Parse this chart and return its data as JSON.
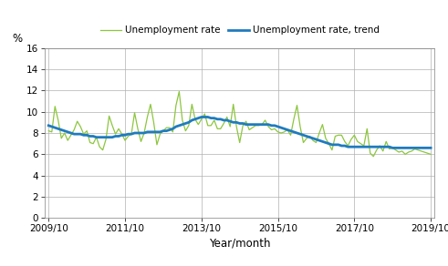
{
  "ylabel": "%",
  "xlabel": "Year/month",
  "ylim": [
    0,
    16
  ],
  "yticks": [
    0,
    2,
    4,
    6,
    8,
    10,
    12,
    14,
    16
  ],
  "xtick_labels": [
    "2009/10",
    "2011/10",
    "2013/10",
    "2015/10",
    "2017/10",
    "2019/10"
  ],
  "line_color_rate": "#8dc63f",
  "line_color_trend": "#1f7bbf",
  "legend_rate": "Unemployment rate",
  "legend_trend": "Unemployment rate, trend",
  "unemployment_rate": [
    8.2,
    8.1,
    10.5,
    9.2,
    7.5,
    8.0,
    7.3,
    7.8,
    8.3,
    9.1,
    8.6,
    7.9,
    8.2,
    7.1,
    7.0,
    7.6,
    6.7,
    6.4,
    7.4,
    9.6,
    8.7,
    7.9,
    8.4,
    7.9,
    7.3,
    7.7,
    7.9,
    9.9,
    8.4,
    7.2,
    8.0,
    9.5,
    10.7,
    9.0,
    6.9,
    7.9,
    8.2,
    8.5,
    8.5,
    8.1,
    10.6,
    11.9,
    9.2,
    8.2,
    8.7,
    10.7,
    9.3,
    8.8,
    9.3,
    9.8,
    8.7,
    8.7,
    9.2,
    8.4,
    8.4,
    8.9,
    9.5,
    8.6,
    10.7,
    8.6,
    7.1,
    8.7,
    9.1,
    8.3,
    8.5,
    8.7,
    8.7,
    8.8,
    9.2,
    8.6,
    8.3,
    8.4,
    8.1,
    8.0,
    8.1,
    8.3,
    7.8,
    9.3,
    10.6,
    8.6,
    7.1,
    7.5,
    7.7,
    7.3,
    7.1,
    8.0,
    8.8,
    7.5,
    7.0,
    6.4,
    7.7,
    7.8,
    7.8,
    7.2,
    6.8,
    7.4,
    7.8,
    7.2,
    7.0,
    6.8,
    8.4,
    6.1,
    5.8,
    6.4,
    6.8,
    6.3,
    7.2,
    6.5,
    6.6,
    6.4,
    6.2,
    6.3,
    6.0,
    6.2,
    6.3,
    6.5,
    6.4,
    6.3,
    6.2,
    6.1,
    6.0
  ],
  "unemployment_trend": [
    8.7,
    8.6,
    8.5,
    8.4,
    8.3,
    8.2,
    8.1,
    8.0,
    7.9,
    7.9,
    7.9,
    7.8,
    7.8,
    7.7,
    7.7,
    7.6,
    7.6,
    7.6,
    7.6,
    7.6,
    7.6,
    7.7,
    7.7,
    7.8,
    7.8,
    7.9,
    7.9,
    8.0,
    8.0,
    8.0,
    8.0,
    8.1,
    8.1,
    8.1,
    8.1,
    8.1,
    8.2,
    8.2,
    8.3,
    8.4,
    8.6,
    8.7,
    8.8,
    8.9,
    9.0,
    9.2,
    9.3,
    9.4,
    9.5,
    9.5,
    9.5,
    9.4,
    9.4,
    9.3,
    9.3,
    9.2,
    9.2,
    9.1,
    9.0,
    9.0,
    8.9,
    8.9,
    8.8,
    8.8,
    8.8,
    8.8,
    8.8,
    8.8,
    8.8,
    8.8,
    8.7,
    8.7,
    8.6,
    8.5,
    8.4,
    8.3,
    8.2,
    8.1,
    8.0,
    7.9,
    7.8,
    7.7,
    7.6,
    7.5,
    7.4,
    7.3,
    7.2,
    7.1,
    7.0,
    6.9,
    6.9,
    6.9,
    6.8,
    6.8,
    6.7,
    6.7,
    6.7,
    6.7,
    6.7,
    6.7,
    6.7,
    6.7,
    6.7,
    6.7,
    6.7,
    6.7,
    6.7,
    6.7,
    6.6,
    6.6,
    6.6,
    6.6,
    6.6,
    6.6,
    6.6,
    6.6,
    6.6,
    6.6,
    6.6,
    6.6,
    6.6
  ]
}
